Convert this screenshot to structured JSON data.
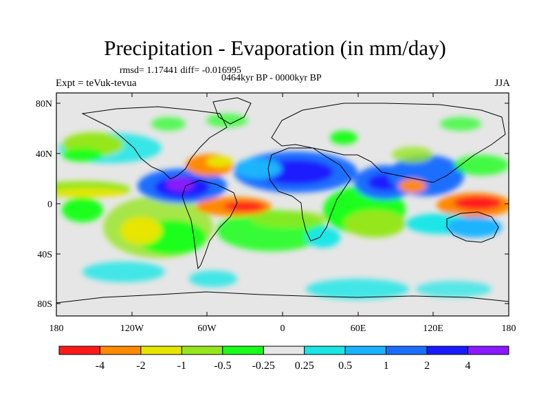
{
  "title": "Precipitation - Evaporation (in mm/day)",
  "stats": "rmsd= 1.17441 diff= -0.016995",
  "period": "0464kyr BP - 0000kyr BP",
  "experiment": "Expt = teVuk-tevua",
  "season": "JJA",
  "map": {
    "lon_labels": [
      "180",
      "120W",
      "60W",
      "0",
      "60E",
      "120E",
      "180"
    ],
    "lat_labels": [
      "80N",
      "40N",
      "0",
      "40S",
      "80S"
    ],
    "background_color": "#e6e6e6"
  },
  "colorbar": {
    "colors": [
      "#ff1a1a",
      "#ff8a00",
      "#e6e600",
      "#96e61e",
      "#1aff1a",
      "#e6e6e6",
      "#1ae6e6",
      "#1ab3ff",
      "#1a6eff",
      "#1a1aff",
      "#8a1aff"
    ],
    "labels": [
      "-4",
      "-2",
      "-1",
      "-0.5",
      "-0.25",
      "0.25",
      "0.5",
      "1",
      "2",
      "4"
    ]
  }
}
